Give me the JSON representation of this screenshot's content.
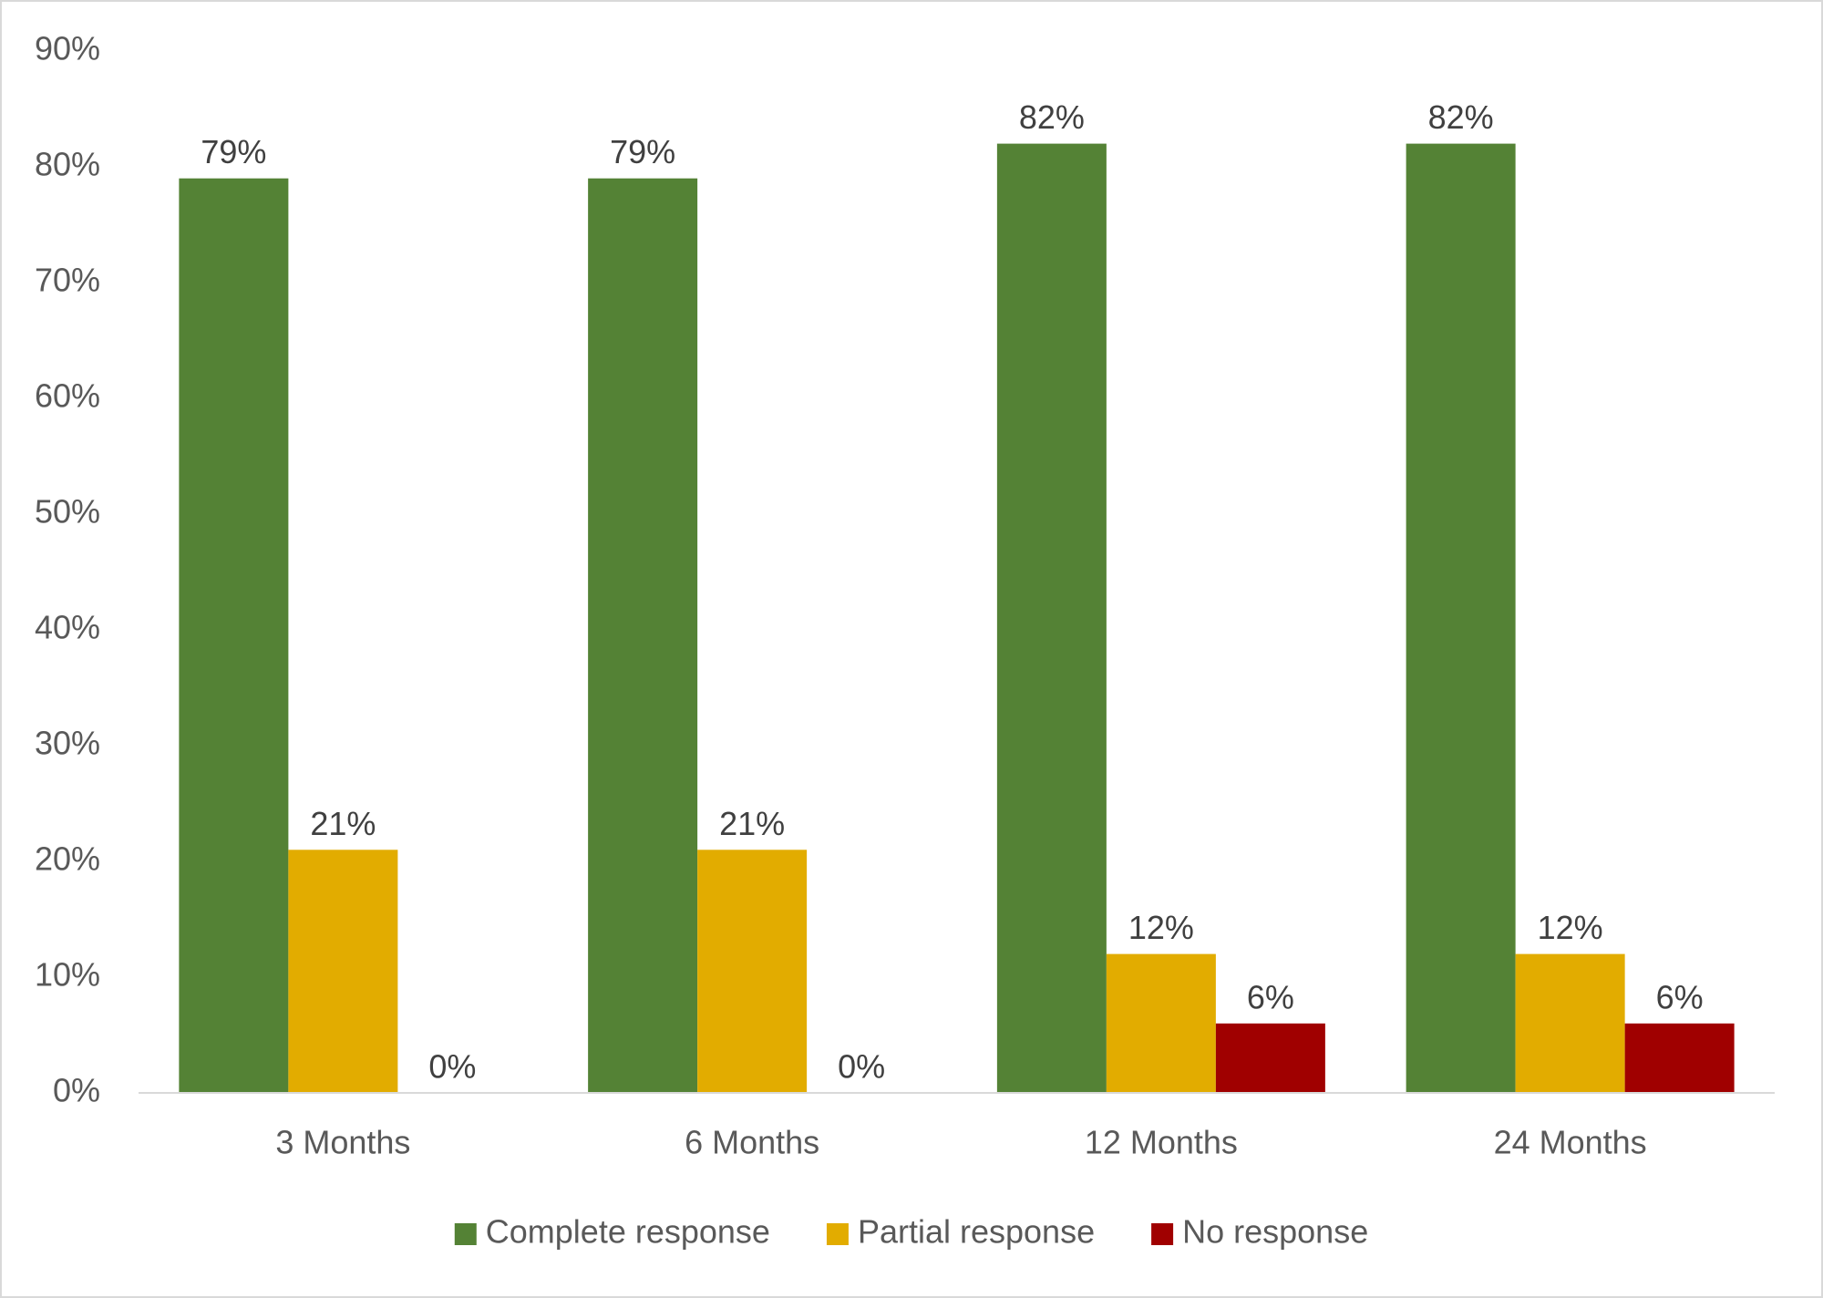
{
  "chart_data": {
    "type": "bar",
    "categories": [
      "3 Months",
      "6 Months",
      "12 Months",
      "24 Months"
    ],
    "series": [
      {
        "name": "Complete response",
        "values": [
          79,
          79,
          82,
          82
        ],
        "color": "#548235"
      },
      {
        "name": "Partial response",
        "values": [
          21,
          21,
          12,
          12
        ],
        "color": "#E2AC00"
      },
      {
        "name": "No response",
        "values": [
          0,
          0,
          6,
          6
        ],
        "color": "#A00000"
      }
    ],
    "data_labels": [
      [
        "79%",
        "79%",
        "82%",
        "82%"
      ],
      [
        "21%",
        "21%",
        "12%",
        "12%"
      ],
      [
        "0%",
        "0%",
        "6%",
        "6%"
      ]
    ],
    "y_ticks": [
      "0%",
      "10%",
      "20%",
      "30%",
      "40%",
      "50%",
      "60%",
      "70%",
      "80%",
      "90%"
    ],
    "ylim": [
      0,
      90
    ],
    "title": "",
    "xlabel": "",
    "ylabel": "",
    "grid": false,
    "legend_position": "bottom-center",
    "axis_color": "#d9d9d9"
  }
}
